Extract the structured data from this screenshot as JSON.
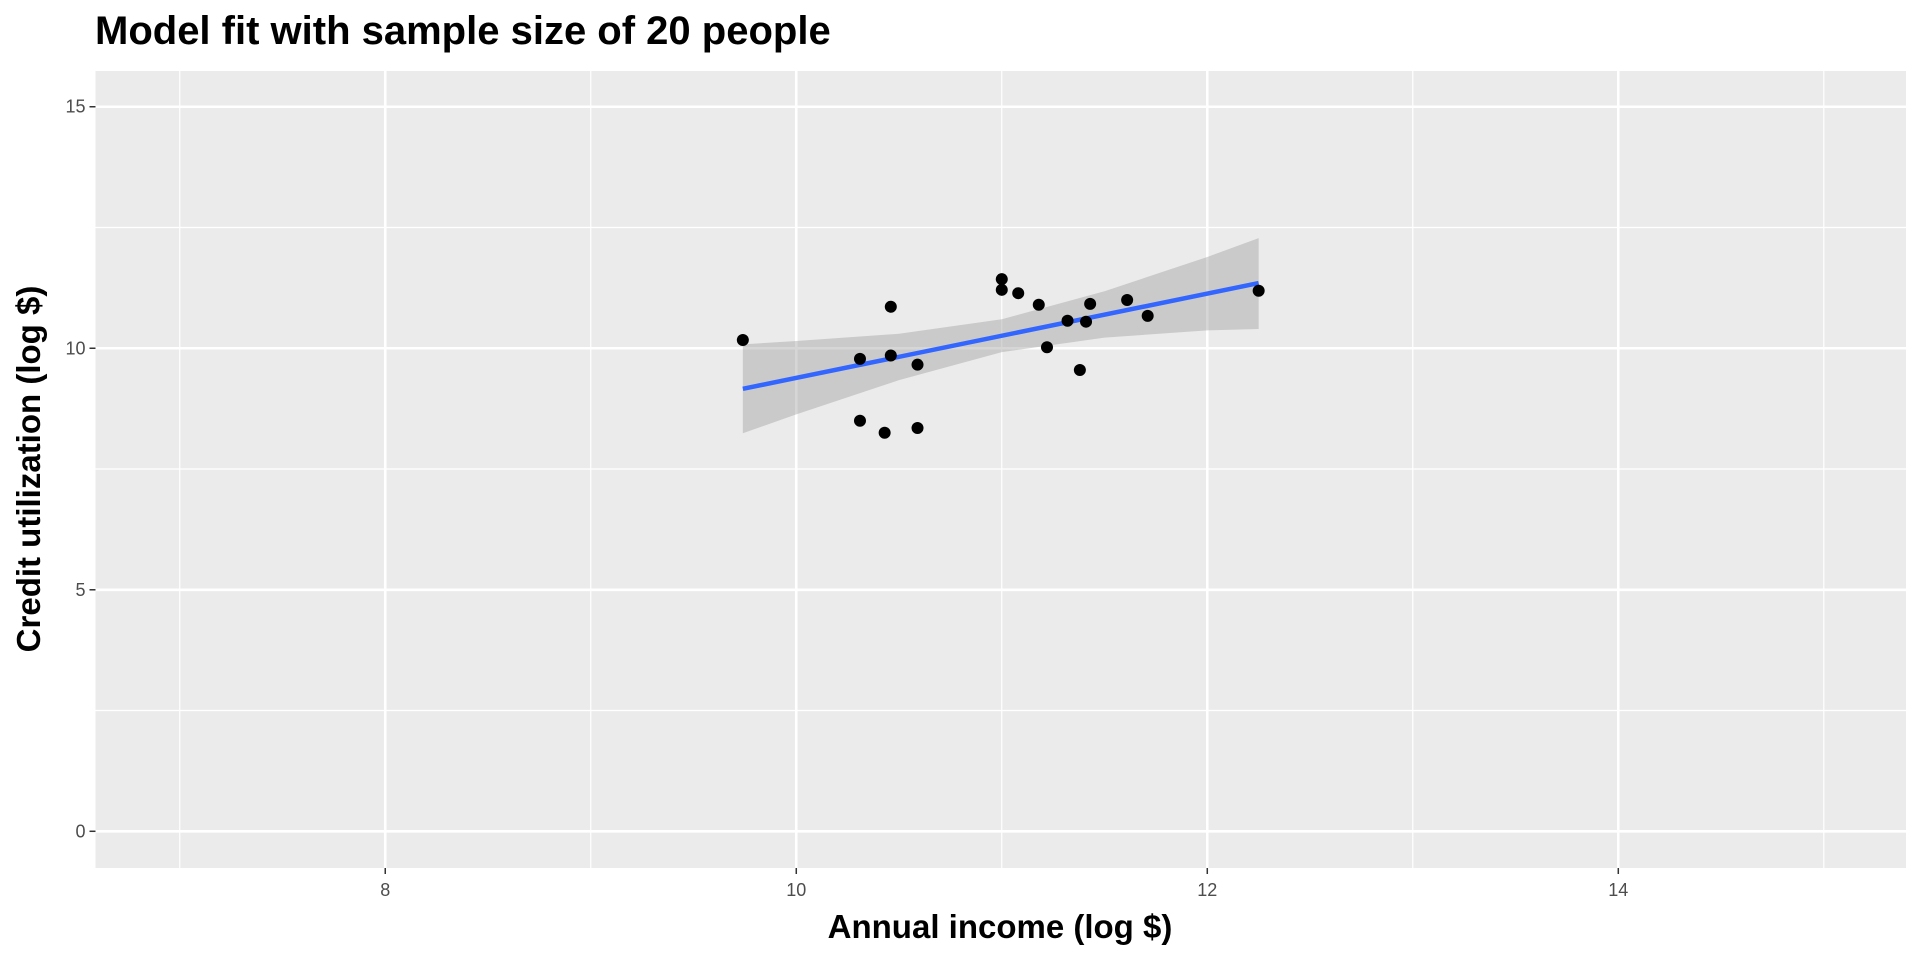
{
  "chart_data": {
    "type": "scatter",
    "title": "Model fit with sample size of 20 people",
    "xlabel": "Annual income (log $)",
    "ylabel": "Credit utilization (log $)",
    "xlim": [
      6.59,
      15.4
    ],
    "ylim": [
      -0.76,
      15.74
    ],
    "xticks": [
      8,
      10,
      12,
      14
    ],
    "xtick_labels": [
      "8",
      "10",
      "12",
      "14"
    ],
    "yticks": [
      0,
      5,
      10,
      15
    ],
    "ytick_labels": [
      "0",
      "5",
      "10",
      "15"
    ],
    "grid": true,
    "points": [
      {
        "x": 9.74,
        "y": 10.17
      },
      {
        "x": 10.31,
        "y": 9.78
      },
      {
        "x": 10.46,
        "y": 9.85
      },
      {
        "x": 10.46,
        "y": 10.86
      },
      {
        "x": 10.59,
        "y": 9.66
      },
      {
        "x": 10.31,
        "y": 8.5
      },
      {
        "x": 10.43,
        "y": 8.25
      },
      {
        "x": 10.59,
        "y": 8.35
      },
      {
        "x": 11.0,
        "y": 11.43
      },
      {
        "x": 11.0,
        "y": 11.21
      },
      {
        "x": 11.08,
        "y": 11.14
      },
      {
        "x": 11.18,
        "y": 10.9
      },
      {
        "x": 11.22,
        "y": 10.02
      },
      {
        "x": 11.32,
        "y": 10.57
      },
      {
        "x": 11.41,
        "y": 10.55
      },
      {
        "x": 11.43,
        "y": 10.92
      },
      {
        "x": 11.38,
        "y": 9.55
      },
      {
        "x": 11.61,
        "y": 11.0
      },
      {
        "x": 11.71,
        "y": 10.67
      },
      {
        "x": 12.25,
        "y": 11.19
      }
    ],
    "fit_line": {
      "x": [
        9.74,
        12.25
      ],
      "y": [
        9.16,
        11.35
      ],
      "color": "#3366FF"
    },
    "confidence_band": {
      "x": [
        9.74,
        10.0,
        10.5,
        11.0,
        11.5,
        12.0,
        12.25
      ],
      "lower": [
        8.24,
        8.63,
        9.34,
        9.92,
        10.22,
        10.37,
        10.4
      ],
      "upper": [
        10.08,
        10.15,
        10.3,
        10.6,
        11.18,
        11.89,
        12.28
      ],
      "color": "#999999"
    },
    "colors": {
      "panel": "#EBEBEB",
      "grid": "#FFFFFF",
      "point": "#000000"
    }
  }
}
